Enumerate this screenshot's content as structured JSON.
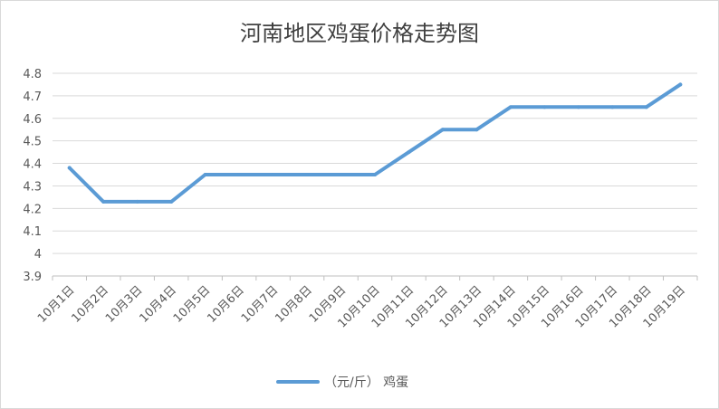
{
  "chart_data": {
    "type": "line",
    "title": "河南地区鸡蛋价格走势图",
    "xlabel": "",
    "ylabel": "",
    "categories": [
      "10月1日",
      "10月2日",
      "10月3日",
      "10月4日",
      "10月5日",
      "10月6日",
      "10月7日",
      "10月8日",
      "10月9日",
      "10月10日",
      "10月11日",
      "10月12日",
      "10月13日",
      "10月14日",
      "10月15日",
      "10月16日",
      "10月17日",
      "10月18日",
      "10月19日"
    ],
    "series": [
      {
        "name": "（元/斤） 鸡蛋",
        "color": "#5b9bd5",
        "values": [
          4.38,
          4.23,
          4.23,
          4.23,
          4.35,
          4.35,
          4.35,
          4.35,
          4.35,
          4.35,
          4.45,
          4.55,
          4.55,
          4.65,
          4.65,
          4.65,
          4.65,
          4.65,
          4.75
        ]
      }
    ],
    "ylim": [
      3.9,
      4.8
    ],
    "yticks": [
      "3.9",
      "4",
      "4.1",
      "4.2",
      "4.3",
      "4.4",
      "4.5",
      "4.6",
      "4.7",
      "4.8"
    ],
    "grid": true,
    "legend": "bottom"
  }
}
